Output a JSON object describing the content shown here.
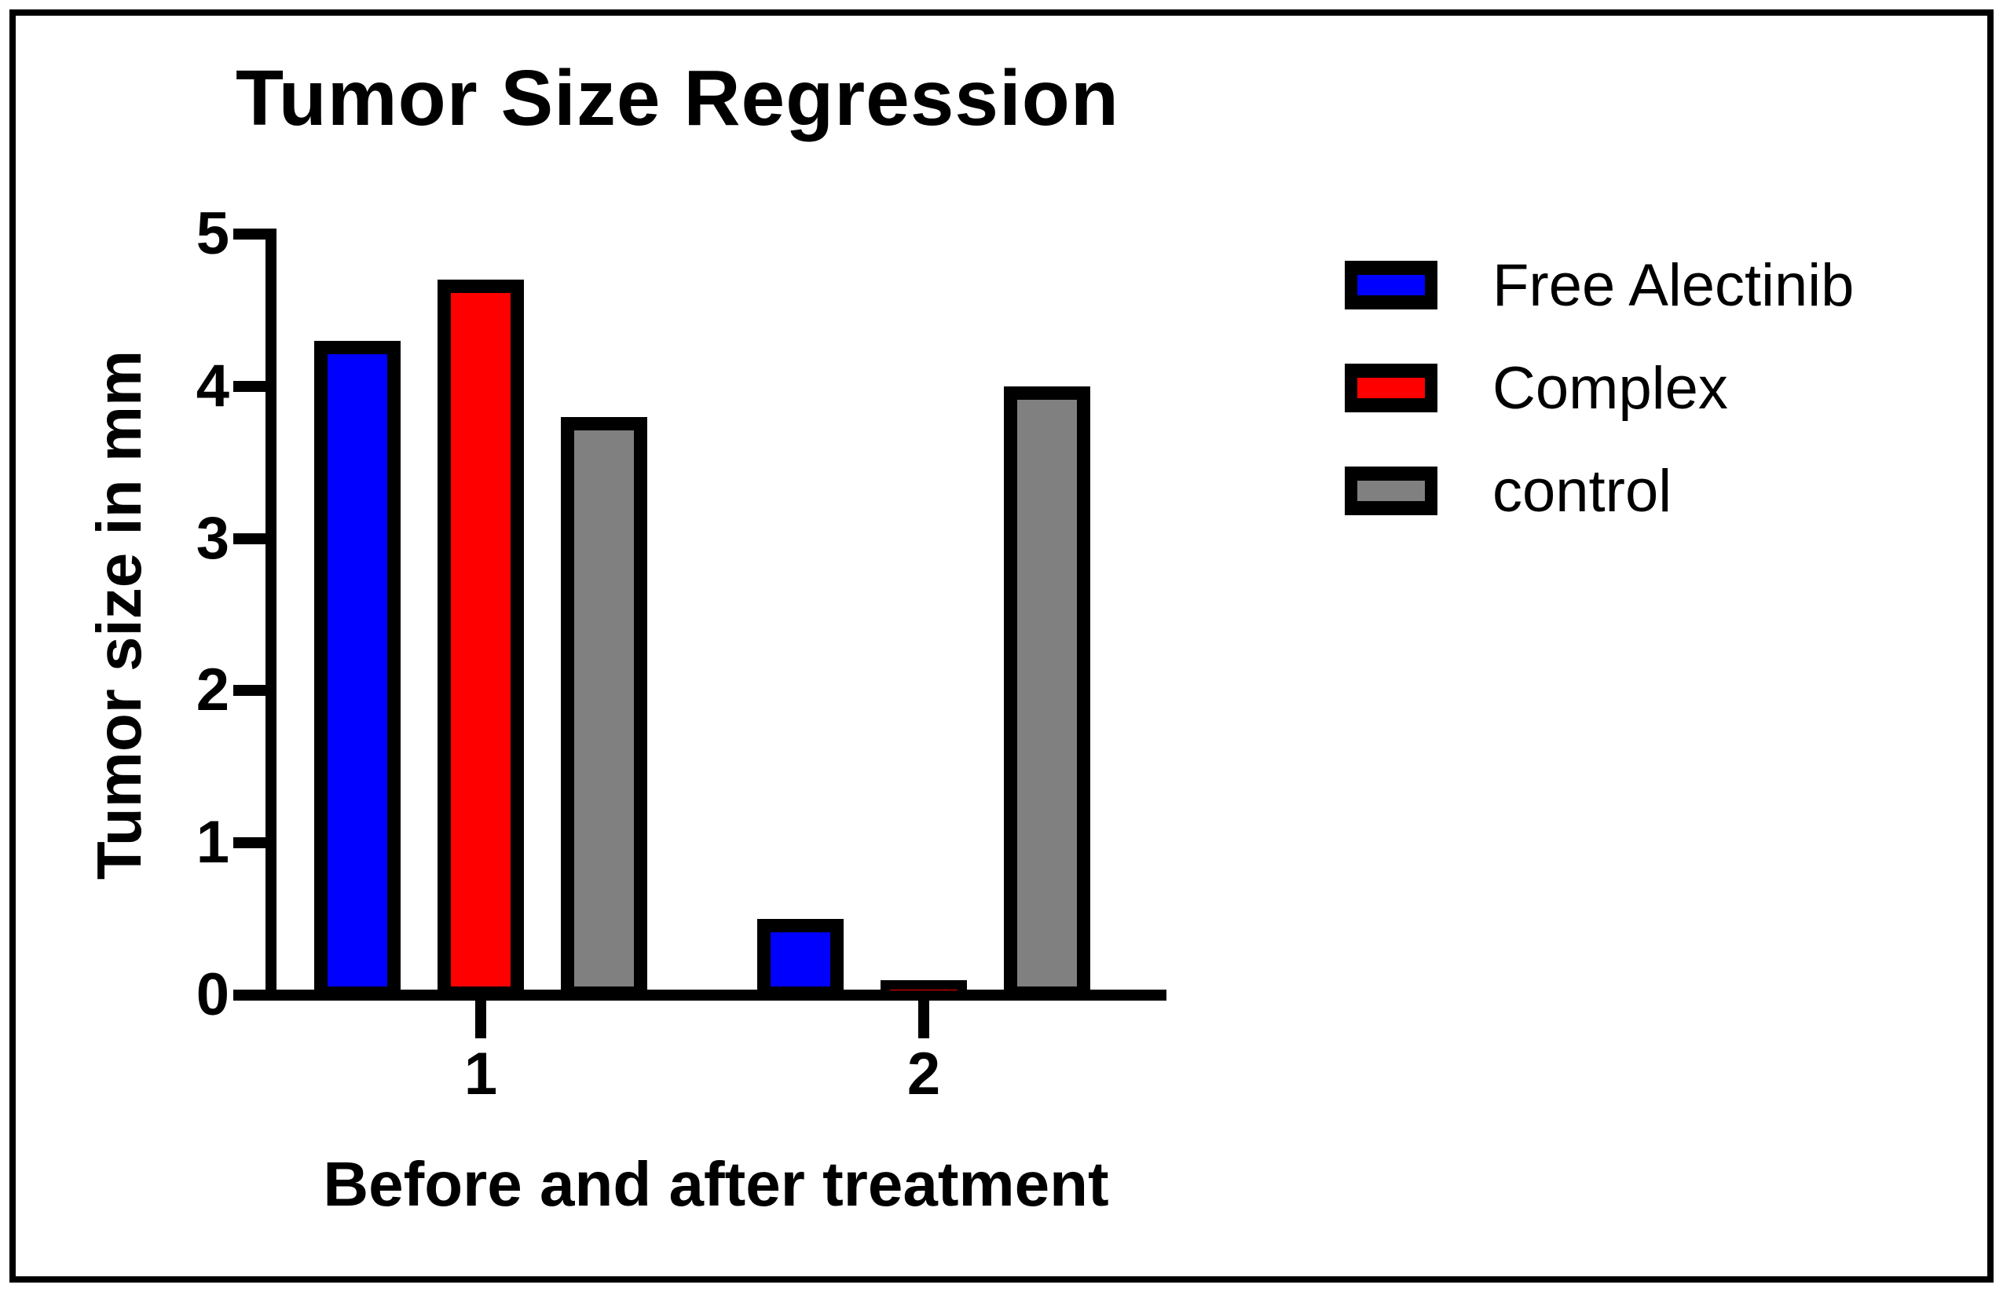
{
  "chart_data": {
    "type": "bar",
    "title": "Tumor Size Regression",
    "xlabel": "Before and after treatment",
    "ylabel": "Tumor size in mm",
    "categories": [
      "1",
      "2"
    ],
    "series": [
      {
        "name": "Free Alectinib",
        "color": "#0000FF",
        "values": [
          4.3,
          0.5
        ]
      },
      {
        "name": "Complex",
        "color": "#FF0000",
        "values": [
          4.7,
          0.1
        ]
      },
      {
        "name": "control",
        "color": "#808080",
        "values": [
          3.8,
          4.0
        ]
      }
    ],
    "ylim": [
      0,
      5
    ],
    "yticks": [
      0,
      1,
      2,
      3,
      4,
      5
    ],
    "grid": false,
    "legend_position": "right",
    "bar_border_color": "#000000",
    "axis_color": "#000000",
    "background_color": "#FFFFFF"
  }
}
